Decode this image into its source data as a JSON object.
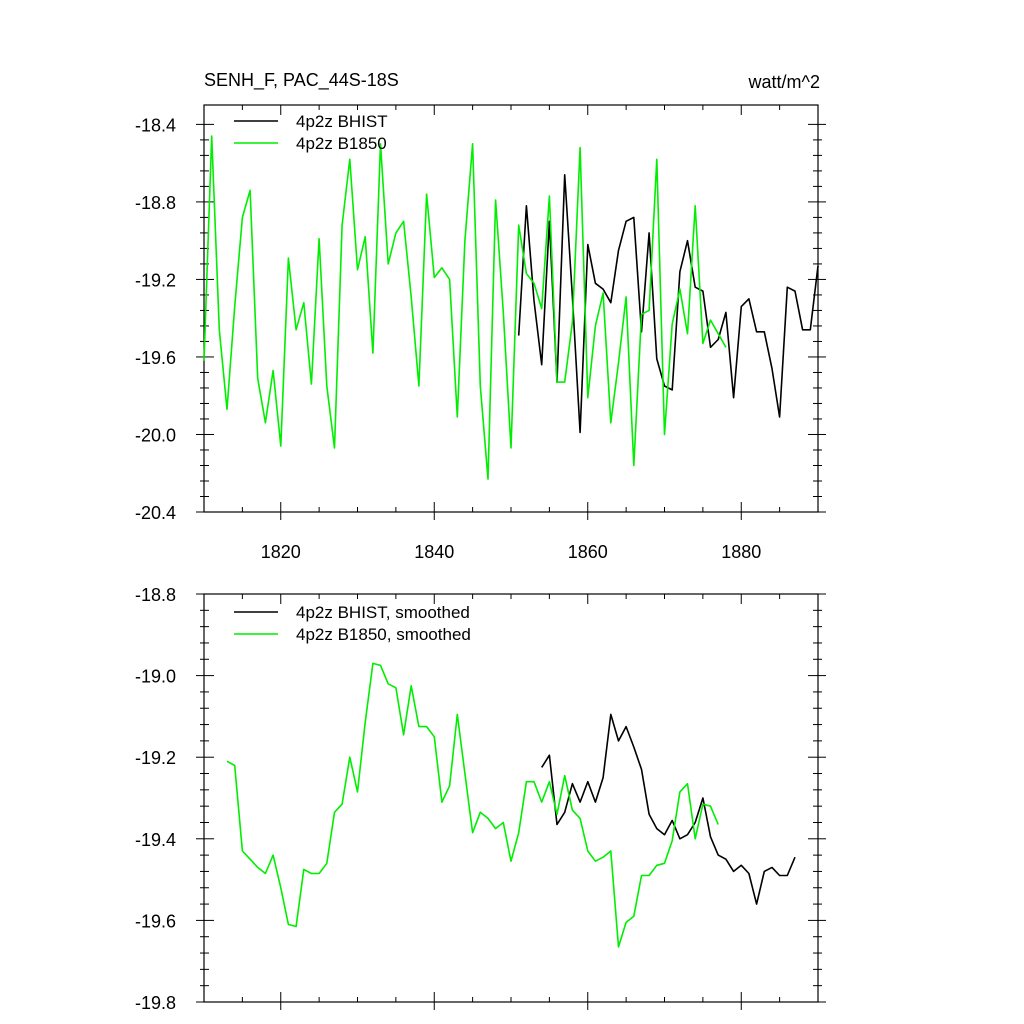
{
  "title_left": "SENH_F, PAC_44S-18S",
  "title_right": "watt/m^2",
  "colors": {
    "bhist": "#000000",
    "b1850": "#00ee00",
    "axis": "#000000"
  },
  "chart_data": [
    {
      "type": "line",
      "panel": "top",
      "xlim": [
        1810,
        1890
      ],
      "ylim": [
        -20.4,
        -18.3
      ],
      "x_ticks": [
        1820,
        1840,
        1860,
        1880
      ],
      "x_tick_labels": [
        "1820",
        "1840",
        "1860",
        "1880"
      ],
      "y_ticks": [
        -18.4,
        -18.8,
        -19.2,
        -19.6,
        -20.0,
        -20.4
      ],
      "y_tick_labels": [
        "-18.4",
        "-18.8",
        "-19.2",
        "-19.6",
        "-20.0",
        "-20.4"
      ],
      "legend_position": "top-left",
      "series": [
        {
          "name": "4p2z BHIST",
          "color": "#000000",
          "x_start": 1851,
          "values": [
            -19.49,
            -18.82,
            -19.31,
            -19.64,
            -18.9,
            -19.73,
            -18.66,
            -19.29,
            -19.99,
            -19.02,
            -19.22,
            -19.25,
            -19.32,
            -19.05,
            -18.9,
            -18.88,
            -19.47,
            -18.96,
            -19.61,
            -19.75,
            -19.77,
            -19.16,
            -19.0,
            -19.24,
            -19.26,
            -19.55,
            -19.51,
            -19.37,
            -19.81,
            -19.34,
            -19.3,
            -19.47,
            -19.47,
            -19.66,
            -19.91,
            -19.24,
            -19.26,
            -19.46,
            -19.46,
            -19.13
          ]
        },
        {
          "name": "4p2z B1850",
          "color": "#00ee00",
          "x_start": 1810,
          "values": [
            -19.62,
            -18.46,
            -19.46,
            -19.87,
            -19.34,
            -18.88,
            -18.74,
            -19.71,
            -19.94,
            -19.67,
            -20.06,
            -19.09,
            -19.46,
            -19.32,
            -19.74,
            -18.99,
            -19.75,
            -20.07,
            -18.92,
            -18.58,
            -19.15,
            -18.98,
            -19.58,
            -18.5,
            -19.12,
            -18.96,
            -18.9,
            -19.29,
            -19.75,
            -18.76,
            -19.19,
            -19.14,
            -19.2,
            -19.91,
            -19.0,
            -18.5,
            -19.75,
            -20.23,
            -18.79,
            -19.37,
            -20.07,
            -18.92,
            -19.17,
            -19.22,
            -19.35,
            -18.77,
            -19.73,
            -19.73,
            -19.42,
            -18.52,
            -19.81,
            -19.44,
            -19.27,
            -19.94,
            -19.63,
            -19.29,
            -20.16,
            -19.38,
            -19.36,
            -18.58,
            -20.0,
            -19.43,
            -19.25,
            -19.48,
            -18.82,
            -19.53,
            -19.41,
            -19.48,
            -19.55
          ]
        }
      ]
    },
    {
      "type": "line",
      "panel": "bottom",
      "xlim": [
        1810,
        1890
      ],
      "ylim": [
        -19.8,
        -18.8
      ],
      "y_ticks": [
        -18.8,
        -19.0,
        -19.2,
        -19.4,
        -19.6,
        -19.8
      ],
      "y_tick_labels": [
        "-18.8",
        "-19.0",
        "-19.2",
        "-19.4",
        "-19.6",
        "-19.8"
      ],
      "legend_position": "top-left",
      "series": [
        {
          "name": "4p2z BHIST, smoothed",
          "color": "#000000",
          "x_start": 1854,
          "values": [
            -19.225,
            -19.195,
            -19.365,
            -19.335,
            -19.265,
            -19.31,
            -19.26,
            -19.31,
            -19.25,
            -19.095,
            -19.16,
            -19.125,
            -19.175,
            -19.23,
            -19.34,
            -19.375,
            -19.39,
            -19.355,
            -19.4,
            -19.39,
            -19.36,
            -19.3,
            -19.395,
            -19.44,
            -19.45,
            -19.48,
            -19.465,
            -19.485,
            -19.56,
            -19.48,
            -19.47,
            -19.49,
            -19.49,
            -19.445
          ]
        },
        {
          "name": "4p2z B1850, smoothed",
          "color": "#00ee00",
          "x_start": 1813,
          "values": [
            -19.21,
            -19.22,
            -19.43,
            -19.45,
            -19.47,
            -19.485,
            -19.44,
            -19.52,
            -19.61,
            -19.615,
            -19.475,
            -19.485,
            -19.485,
            -19.46,
            -19.335,
            -19.315,
            -19.2,
            -19.285,
            -19.115,
            -18.97,
            -18.975,
            -19.02,
            -19.03,
            -19.145,
            -19.025,
            -19.125,
            -19.125,
            -19.15,
            -19.31,
            -19.27,
            -19.095,
            -19.24,
            -19.385,
            -19.335,
            -19.35,
            -19.375,
            -19.36,
            -19.455,
            -19.385,
            -19.26,
            -19.26,
            -19.31,
            -19.26,
            -19.34,
            -19.245,
            -19.33,
            -19.35,
            -19.43,
            -19.455,
            -19.445,
            -19.43,
            -19.665,
            -19.605,
            -19.59,
            -19.49,
            -19.49,
            -19.465,
            -19.46,
            -19.405,
            -19.285,
            -19.265,
            -19.4,
            -19.315,
            -19.32,
            -19.365
          ]
        }
      ]
    }
  ]
}
